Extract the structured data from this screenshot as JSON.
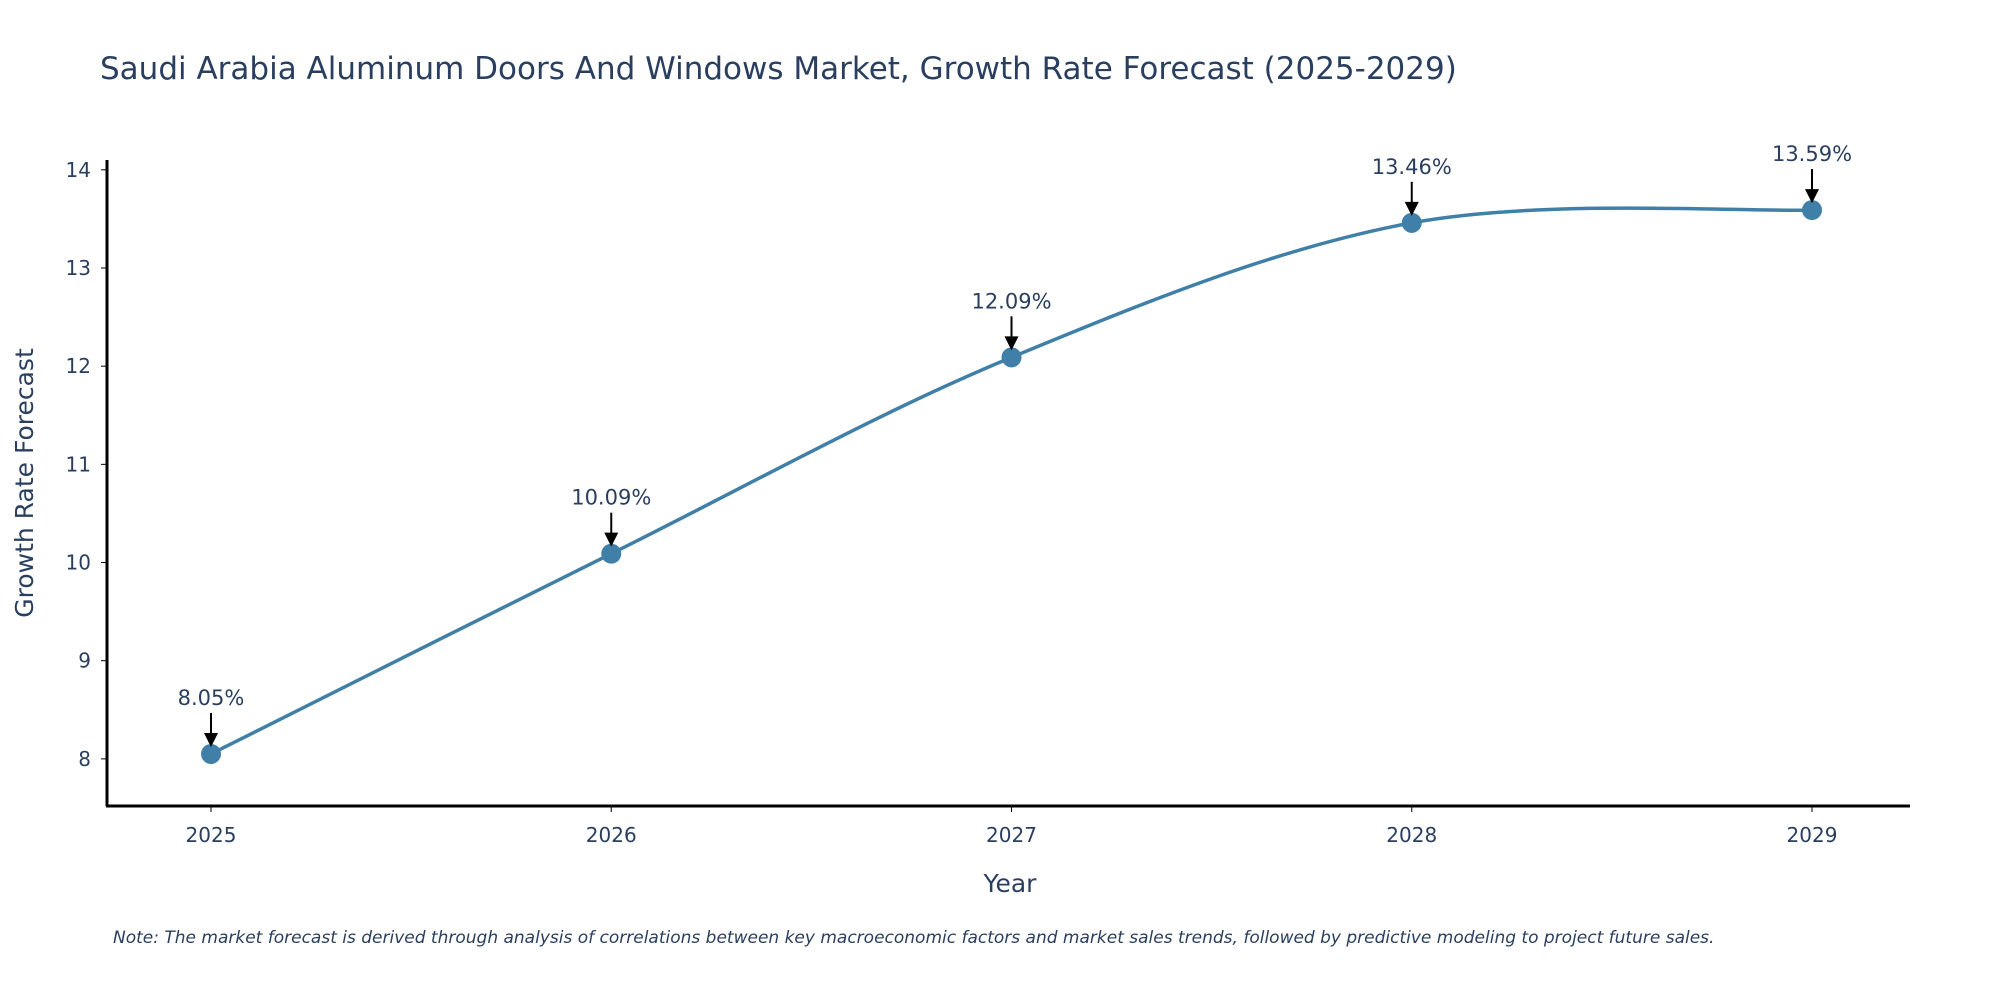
{
  "chart_data": {
    "type": "line",
    "title": "Saudi Arabia Aluminum Doors And Windows Market, Growth Rate Forecast (2025-2029)",
    "xlabel": "Year",
    "ylabel": "Growth Rate Forecast",
    "categories": [
      "2025",
      "2026",
      "2027",
      "2028",
      "2029"
    ],
    "series": [
      {
        "name": "Growth Rate Forecast",
        "values": [
          8.05,
          10.09,
          12.09,
          13.46,
          13.59
        ]
      }
    ],
    "data_labels": [
      "8.05%",
      "10.09%",
      "12.09%",
      "13.46%",
      "13.59%"
    ],
    "yticks": [
      8,
      9,
      10,
      11,
      12,
      13,
      14
    ],
    "ylim": [
      7.52,
      14.1
    ],
    "grid": false,
    "line_color": "#3f7fa8",
    "marker_color": "#3f7fa8",
    "note": "Note: The market forecast is derived through analysis of correlations between key macroeconomic factors and market sales trends, followed by predictive modeling to project future sales."
  }
}
